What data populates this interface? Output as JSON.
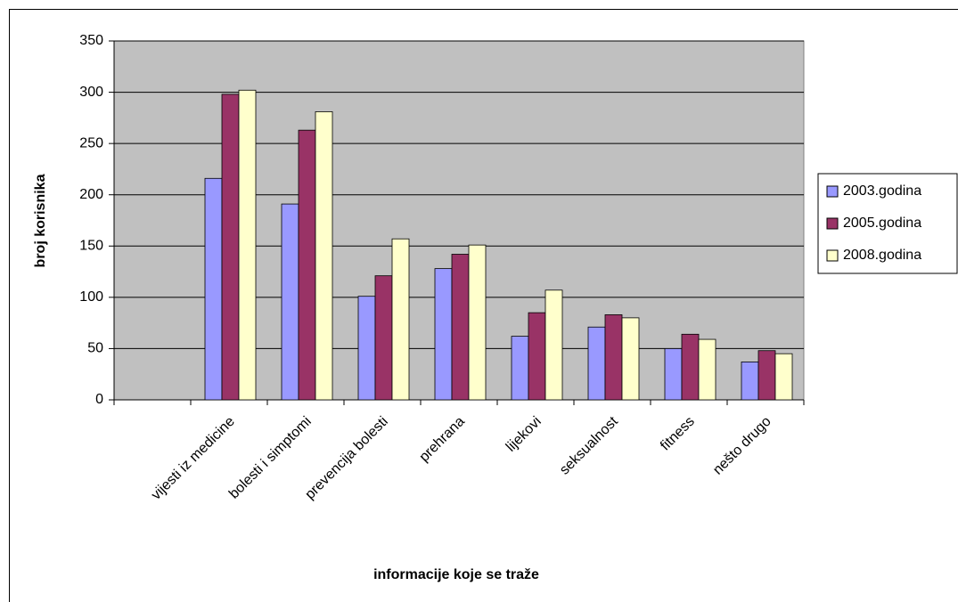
{
  "chart_data": {
    "type": "bar",
    "x_label": "informacije koje se traže",
    "y_label": "broj korisnika",
    "categories": [
      null,
      "vijesti iz medicine",
      "bolesti i simptomi",
      "prevencija bolesti",
      "prehrana",
      "lijekovi",
      "seksualnost",
      "fitness",
      "nešto drugo"
    ],
    "series": [
      {
        "name": "2003.godina",
        "color": "#9999ff",
        "values": [
          null,
          216,
          191,
          101,
          128,
          62,
          71,
          50,
          37
        ]
      },
      {
        "name": "2005.godina",
        "color": "#993366",
        "values": [
          null,
          298,
          263,
          121,
          142,
          85,
          83,
          64,
          48
        ]
      },
      {
        "name": "2008.godina",
        "color": "#ffffcc",
        "values": [
          null,
          302,
          281,
          157,
          151,
          107,
          80,
          59,
          45
        ]
      }
    ],
    "ylim": [
      0,
      350
    ],
    "yticks": [
      0,
      50,
      100,
      150,
      200,
      250,
      300,
      350
    ],
    "grid": true,
    "legend": "right",
    "plot_background": "#c0c0c0"
  }
}
